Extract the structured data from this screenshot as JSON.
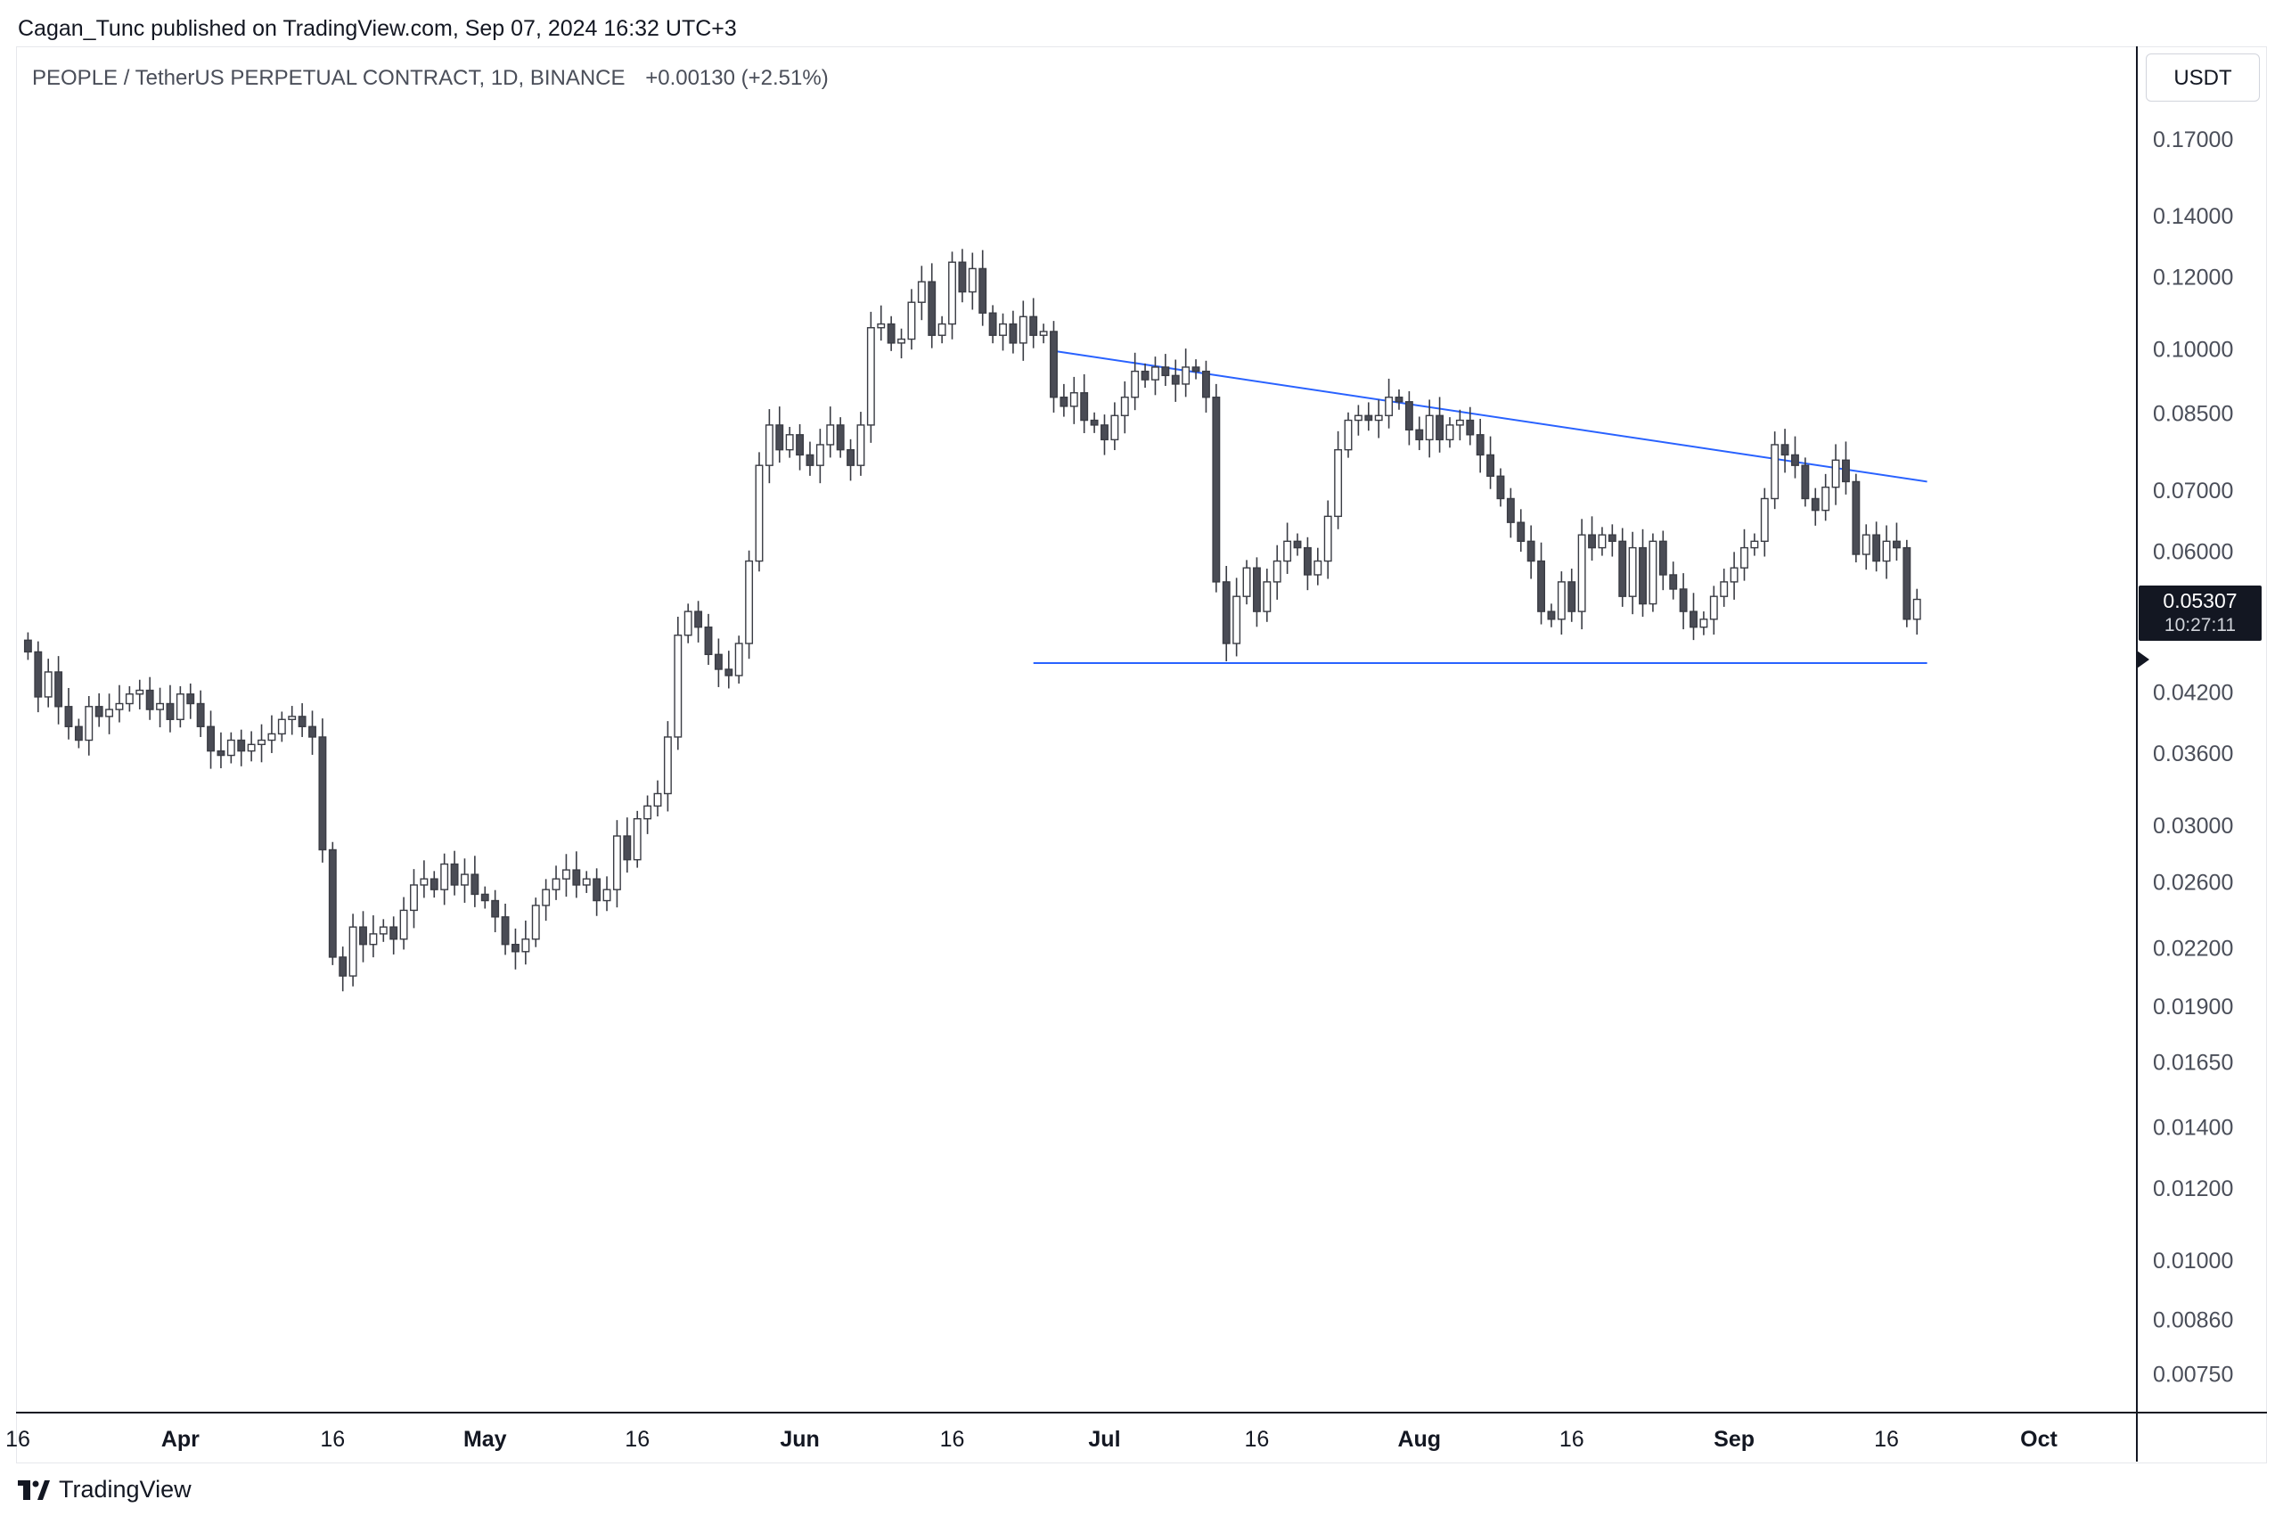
{
  "publisher": "Cagan_Tunc published on TradingView.com, Sep 07, 2024 16:32 UTC+3",
  "symbol": {
    "title": "PEOPLE / TetherUS PERPETUAL CONTRACT, 1D, BINANCE",
    "change": "+0.00130 (+2.51%)"
  },
  "currency": "USDT",
  "last_price": {
    "value": "0.05307",
    "countdown": "10:27:11"
  },
  "brand": "TradingView",
  "colors": {
    "up_body": "#ffffff",
    "down_body": "#4a4c55",
    "candle_outline": "#3a3c44",
    "trendline": "#2962ff",
    "label_bg": "#131722"
  },
  "chart_data": {
    "type": "candlestick",
    "scale": "log",
    "price_ticks": [
      "0.17000",
      "0.14000",
      "0.12000",
      "0.10000",
      "0.08500",
      "0.07000",
      "0.06000",
      "0.04200",
      "0.03600",
      "0.03000",
      "0.02600",
      "0.02200",
      "0.01900",
      "0.01650",
      "0.01400",
      "0.01200",
      "0.01000",
      "0.00860",
      "0.00750"
    ],
    "time_ticks": [
      {
        "date": "2024-03-16",
        "label": "16"
      },
      {
        "date": "2024-04-01",
        "label": "Apr"
      },
      {
        "date": "2024-04-16",
        "label": "16"
      },
      {
        "date": "2024-05-01",
        "label": "May"
      },
      {
        "date": "2024-05-16",
        "label": "16"
      },
      {
        "date": "2024-06-01",
        "label": "Jun"
      },
      {
        "date": "2024-06-16",
        "label": "16"
      },
      {
        "date": "2024-07-01",
        "label": "Jul"
      },
      {
        "date": "2024-07-16",
        "label": "16"
      },
      {
        "date": "2024-08-01",
        "label": "Aug"
      },
      {
        "date": "2024-08-16",
        "label": "16"
      },
      {
        "date": "2024-09-01",
        "label": "Sep"
      },
      {
        "date": "2024-09-16",
        "label": "16"
      },
      {
        "date": "2024-10-01",
        "label": "Oct"
      }
    ],
    "x_range": [
      "2024-03-16",
      "2024-10-01"
    ],
    "y_range": [
      0.0068,
      0.195
    ],
    "first_date": "2024-03-17",
    "closes": [
      0.0465,
      0.0415,
      0.0442,
      0.0405,
      0.0385,
      0.0372,
      0.0405,
      0.0395,
      0.0402,
      0.0408,
      0.0418,
      0.0422,
      0.0402,
      0.0408,
      0.0392,
      0.0418,
      0.0408,
      0.0385,
      0.0362,
      0.0358,
      0.0372,
      0.0362,
      0.0368,
      0.0372,
      0.0378,
      0.0392,
      0.0395,
      0.0385,
      0.0375,
      0.0282,
      0.0215,
      0.0205,
      0.0232,
      0.0222,
      0.0228,
      0.0232,
      0.0225,
      0.0242,
      0.0258,
      0.0262,
      0.0255,
      0.0272,
      0.0258,
      0.0265,
      0.0252,
      0.0248,
      0.0238,
      0.0222,
      0.0218,
      0.0225,
      0.0245,
      0.0255,
      0.0262,
      0.0268,
      0.0258,
      0.0262,
      0.0248,
      0.0255,
      0.0292,
      0.0275,
      0.0305,
      0.0315,
      0.0325,
      0.0375,
      0.0485,
      0.0515,
      0.0495,
      0.0462,
      0.0445,
      0.0438,
      0.0475,
      0.0585,
      0.0745,
      0.0825,
      0.0775,
      0.0805,
      0.0765,
      0.0745,
      0.0785,
      0.0825,
      0.0775,
      0.0745,
      0.0825,
      0.1055,
      0.1065,
      0.1015,
      0.1025,
      0.1125,
      0.1185,
      0.1035,
      0.1065,
      0.1245,
      0.1155,
      0.1225,
      0.1095,
      0.1035,
      0.1065,
      0.1015,
      0.1085,
      0.1035,
      0.1045,
      0.0885,
      0.0865,
      0.0895,
      0.0835,
      0.0825,
      0.0795,
      0.0845,
      0.0885,
      0.0945,
      0.0925,
      0.0955,
      0.0935,
      0.0915,
      0.0955,
      0.0945,
      0.0885,
      0.0555,
      0.0475,
      0.0535,
      0.0575,
      0.0515,
      0.0555,
      0.0585,
      0.0615,
      0.0605,
      0.0565,
      0.0585,
      0.0655,
      0.0775,
      0.0835,
      0.0845,
      0.0835,
      0.0845,
      0.0885,
      0.0875,
      0.0815,
      0.0795,
      0.0845,
      0.0795,
      0.0825,
      0.0835,
      0.0805,
      0.0765,
      0.0725,
      0.0685,
      0.0645,
      0.0615,
      0.0585,
      0.0515,
      0.0505,
      0.0555,
      0.0515,
      0.0625,
      0.0605,
      0.0625,
      0.0615,
      0.0535,
      0.0605,
      0.0525,
      0.0615,
      0.0565,
      0.0545,
      0.0515,
      0.0495,
      0.0505,
      0.0535,
      0.0555,
      0.0575,
      0.0605,
      0.0615,
      0.0685,
      0.0785,
      0.0765,
      0.0745,
      0.0685,
      0.0665,
      0.0705,
      0.0755,
      0.0715,
      0.0595,
      0.0625,
      0.0585,
      0.0615,
      0.0605,
      0.0505,
      0.0531
    ],
    "trendlines": [
      {
        "from": {
          "date": "2024-06-26",
          "price": 0.0995
        },
        "to": {
          "date": "2024-09-20",
          "price": 0.0715
        }
      },
      {
        "from": {
          "date": "2024-06-24",
          "price": 0.0452
        },
        "to": {
          "date": "2024-09-20",
          "price": 0.0452
        }
      }
    ],
    "last_price": 0.05307
  }
}
